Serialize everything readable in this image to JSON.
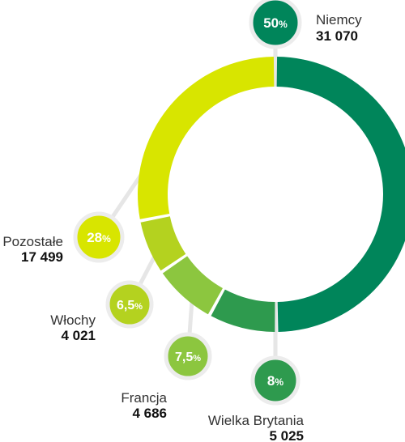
{
  "chart_data": {
    "type": "pie",
    "title": "",
    "slices": [
      {
        "label": "Niemcy",
        "value": 31070,
        "value_label": "31 070",
        "percent_num": "50",
        "percent_sign": "%",
        "color": "#00855a",
        "bubble_color": "#00855a"
      },
      {
        "label": "Wielka Brytania",
        "value": 5025,
        "value_label": "5 025",
        "percent_num": "8",
        "percent_sign": "%",
        "color": "#2e9a4e",
        "bubble_color": "#2e9a4e"
      },
      {
        "label": "Francja",
        "value": 4686,
        "value_label": "4 686",
        "percent_num": "7,5",
        "percent_sign": "%",
        "color": "#8cc63f",
        "bubble_color": "#8cc63f"
      },
      {
        "label": "Włochy",
        "value": 4021,
        "value_label": "4 021",
        "percent_num": "6,5",
        "percent_sign": "%",
        "color": "#b4d21f",
        "bubble_color": "#b4d21f"
      },
      {
        "label": "Pozostałe",
        "value": 17499,
        "value_label": "17 499",
        "percent_num": "28",
        "percent_sign": "%",
        "color": "#d8e500",
        "bubble_color": "#d8e500"
      }
    ],
    "legend": "none"
  }
}
